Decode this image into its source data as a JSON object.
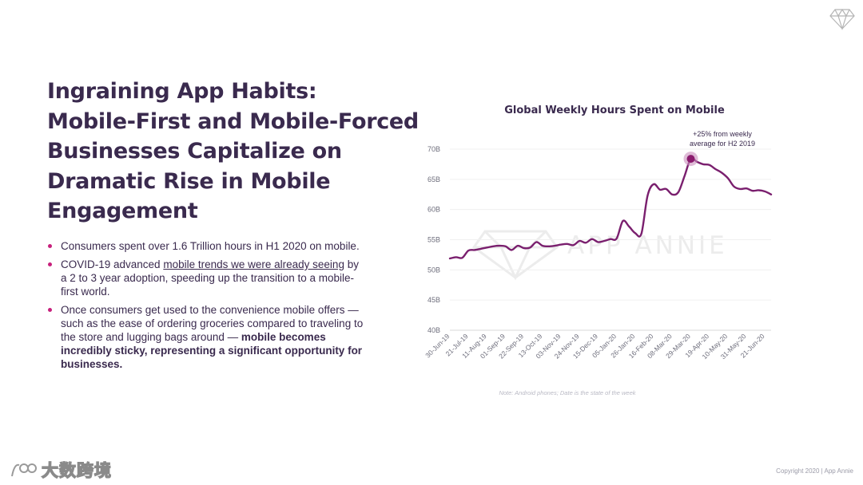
{
  "headline": [
    "Ingraining App Habits:",
    "Mobile-First and Mobile-Forced",
    "Businesses Capitalize on",
    "Dramatic Rise in Mobile",
    "Engagement"
  ],
  "bullets": [
    {
      "text": "Consumers spent over 1.6 Trillion hours in H1 2020 on mobile."
    },
    {
      "pre": "COVID-19 advanced ",
      "underlined": "mobile trends we were already seeing",
      "post": " by a 2 to 3 year adoption, speeding up the transition to a mobile-first world."
    },
    {
      "pre": "Once consumers get used to the convenience mobile offers — such as the ease of ordering groceries compared to traveling to the store and lugging bags around — ",
      "bold": "mobile becomes incredibly sticky, representing a significant opportunity for businesses."
    }
  ],
  "chart_data": {
    "type": "line",
    "title": "Global Weekly Hours Spent on Mobile",
    "ylim": [
      40,
      70
    ],
    "yticks": [
      "70B",
      "65B",
      "60B",
      "55B",
      "50B",
      "45B",
      "40B"
    ],
    "ytick_values": [
      70,
      65,
      60,
      55,
      50,
      45,
      40
    ],
    "xtick_labels": [
      "30-Jun-19",
      "21-Jul-19",
      "11-Aug-19",
      "01-Sep-19",
      "22-Sep-19",
      "13-Oct-19",
      "03-Nov-19",
      "24-Nov-19",
      "15-Dec-19",
      "05-Jan-20",
      "26-Jan-20",
      "16-Feb-20",
      "08-Mar-20",
      "29-Mar-20",
      "19-Apr-20",
      "10-May-20",
      "31-May-20",
      "21-Jun-20"
    ],
    "weeks": [
      "30-Jun-19",
      "07-Jul-19",
      "14-Jul-19",
      "21-Jul-19",
      "28-Jul-19",
      "04-Aug-19",
      "11-Aug-19",
      "18-Aug-19",
      "25-Aug-19",
      "01-Sep-19",
      "08-Sep-19",
      "15-Sep-19",
      "22-Sep-19",
      "29-Sep-19",
      "06-Oct-19",
      "13-Oct-19",
      "20-Oct-19",
      "27-Oct-19",
      "03-Nov-19",
      "10-Nov-19",
      "17-Nov-19",
      "24-Nov-19",
      "01-Dec-19",
      "08-Dec-19",
      "15-Dec-19",
      "22-Dec-19",
      "29-Dec-19",
      "05-Jan-20",
      "12-Jan-20",
      "19-Jan-20",
      "26-Jan-20",
      "02-Feb-20",
      "09-Feb-20",
      "16-Feb-20",
      "23-Feb-20",
      "01-Mar-20",
      "08-Mar-20",
      "15-Mar-20",
      "22-Mar-20",
      "29-Mar-20",
      "05-Apr-20",
      "12-Apr-20",
      "19-Apr-20",
      "26-Apr-20",
      "03-May-20",
      "10-May-20",
      "17-May-20",
      "24-May-20",
      "31-May-20",
      "07-Jun-20",
      "14-Jun-20",
      "21-Jun-20",
      "28-Jun-20"
    ],
    "values": [
      51.9,
      52.1,
      52.0,
      53.2,
      53.3,
      53.5,
      53.7,
      53.9,
      54.0,
      53.9,
      53.3,
      54.0,
      53.6,
      53.7,
      54.6,
      54.0,
      53.9,
      54.0,
      54.2,
      54.3,
      54.1,
      54.8,
      54.5,
      55.1,
      54.6,
      54.8,
      55.1,
      55.2,
      58.1,
      57.2,
      56.1,
      56.0,
      62.3,
      64.2,
      63.3,
      63.4,
      62.5,
      62.9,
      65.6,
      68.4,
      67.9,
      67.5,
      67.4,
      66.7,
      66.1,
      65.2,
      63.8,
      63.4,
      63.5,
      63.1,
      63.2,
      63.0,
      62.5
    ],
    "series_color": "#7a1f6e",
    "peak": {
      "week": "29-Mar-20",
      "value": 68.4
    },
    "annotation": [
      "+25% from weekly",
      "average for H2 2019"
    ],
    "watermark": "APP ANNIE",
    "grid": "horizontal"
  },
  "footnote": "Note: Android phones; Date is the state of the week",
  "copyright": "Copyright 2020  |  App Annie",
  "brand_logo_text": "大数跨境",
  "icons": {
    "top_right": "gem-icon",
    "bottom_left": "brand-logo-icon"
  },
  "colors": {
    "heading": "#3a2a4e",
    "bullet": "#c7207c",
    "line": "#7a1f6e",
    "peak": "#8b1c6e"
  }
}
